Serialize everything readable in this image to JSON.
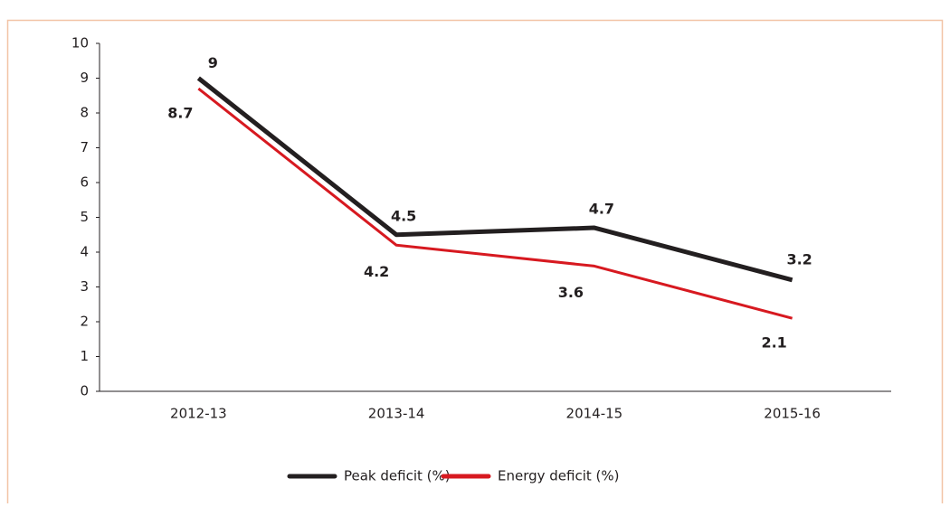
{
  "chart_data": {
    "type": "line",
    "categories": [
      "2012-13",
      "2013-14",
      "2014-15",
      "2015-16"
    ],
    "series": [
      {
        "name": "Peak deficit (%)",
        "color": "#231f20",
        "values": [
          9,
          4.5,
          4.7,
          3.2
        ]
      },
      {
        "name": "Energy deficit (%)",
        "color": "#d71920",
        "values": [
          8.7,
          4.2,
          3.6,
          2.1
        ]
      }
    ],
    "ylim": [
      0,
      10
    ],
    "yticks": [
      0,
      1,
      2,
      3,
      4,
      5,
      6,
      7,
      8,
      9,
      10
    ],
    "legend": "bottom"
  }
}
